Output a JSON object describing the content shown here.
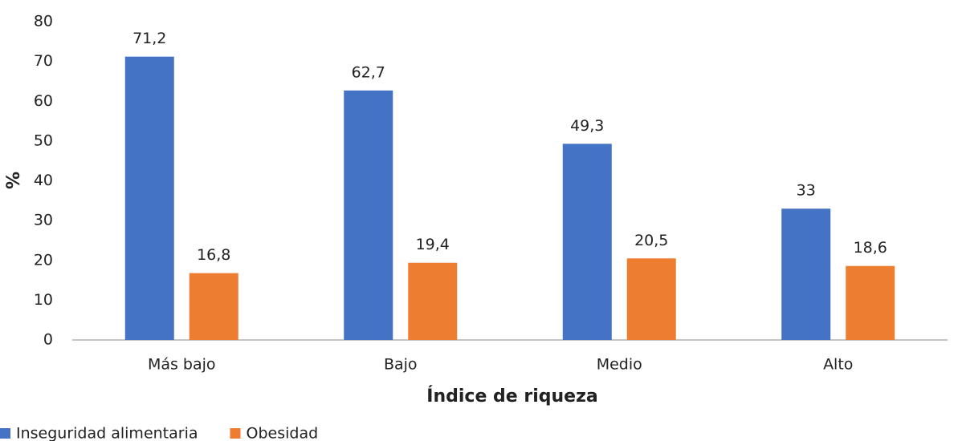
{
  "chart_data": {
    "type": "bar",
    "x_label": "Índice de riqueza",
    "y_label": "%",
    "categories": [
      "Más bajo",
      "Bajo",
      "Medio",
      "Alto"
    ],
    "series": [
      {
        "name": "Inseguridad alimentaria",
        "color": "#4472c4",
        "values": [
          71.2,
          62.7,
          49.3,
          33
        ],
        "value_labels": [
          "71,2",
          "62,7",
          "49,3",
          "33"
        ]
      },
      {
        "name": "Obesidad",
        "color": "#ed7d31",
        "values": [
          16.8,
          19.4,
          20.5,
          18.6
        ],
        "value_labels": [
          "16,8",
          "19,4",
          "20,5",
          "18,6"
        ]
      }
    ],
    "ylim": [
      0,
      80
    ],
    "yticks": [
      0,
      10,
      20,
      30,
      40,
      50,
      60,
      70,
      80
    ],
    "grid": false,
    "legend": "bottom-left"
  }
}
